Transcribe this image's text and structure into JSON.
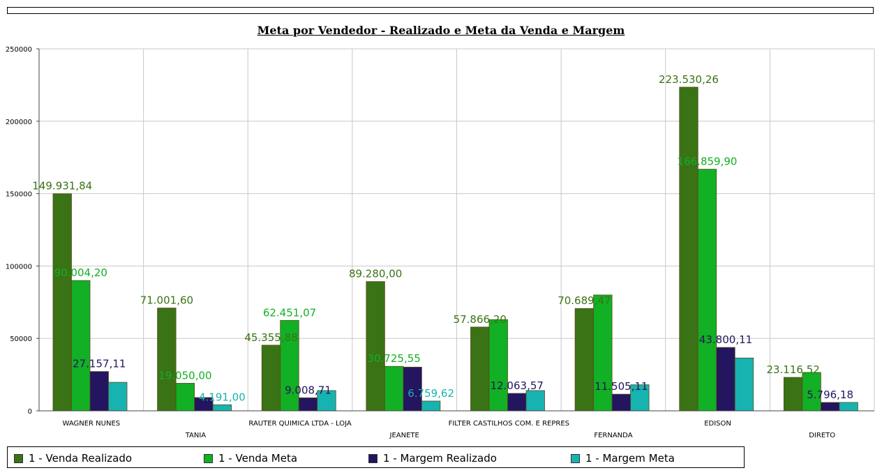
{
  "chart_data": {
    "type": "bar",
    "title": "Meta por Vendedor - Realizado e Meta da Venda e Margem",
    "categories": [
      "WAGNER NUNES",
      "TANIA",
      "RAUTER QUIMICA LTDA - LOJA",
      "JEANETE",
      "FILTER CASTILHOS COM. E REPRES",
      "FERNANDA",
      "EDISON",
      "DIRETO"
    ],
    "ylim": [
      0,
      250000
    ],
    "yticks": [
      0,
      50000,
      100000,
      150000,
      200000,
      250000
    ],
    "ytick_labels": [
      "0",
      "50000",
      "100000",
      "150000",
      "200000",
      "250000"
    ],
    "grid": true,
    "legend_position": "bottom",
    "series": [
      {
        "name": "1 - Venda Realizado",
        "color": "#3a7316",
        "label_color": "#3a7316",
        "values": [
          149931.84,
          71001.6,
          45355.88,
          89280.0,
          57866.2,
          70689.47,
          223530.26,
          23116.52
        ],
        "labels": [
          "149.931,84",
          "71.001,60",
          "45.355,88",
          "89.280,00",
          "57.866,20",
          "70.689,47",
          "223.530,26",
          "23.116,52"
        ]
      },
      {
        "name": "1 - Venda Meta",
        "color": "#12b024",
        "label_color": "#12b024",
        "values": [
          90004.2,
          19050.0,
          62451.07,
          30725.55,
          63000,
          80000,
          166859.9,
          26500
        ],
        "labels": [
          "90.004,20",
          "19.050,00",
          "62.451,07",
          "30.725,55",
          "",
          "",
          "166.859,90",
          ""
        ]
      },
      {
        "name": "1 - Margem Realizado",
        "color": "#23155f",
        "label_color": "#23155f",
        "values": [
          27157.11,
          9200,
          9008.71,
          30200,
          12063.57,
          11505.11,
          43800.11,
          5796.18
        ],
        "labels": [
          "27.157,11",
          "",
          "9.008,71",
          "",
          "12.063,57",
          "11.505,11",
          "43.800,11",
          "5.796,18"
        ]
      },
      {
        "name": "1 - Margem Meta",
        "color": "#17b3b0",
        "label_color": "#17b3b0",
        "values": [
          19700,
          4191.0,
          14000,
          6759.62,
          14000,
          18000,
          36500,
          5800
        ],
        "labels": [
          "",
          "4.191,00",
          "",
          "6.759,62",
          "",
          "",
          "",
          ""
        ]
      }
    ]
  }
}
